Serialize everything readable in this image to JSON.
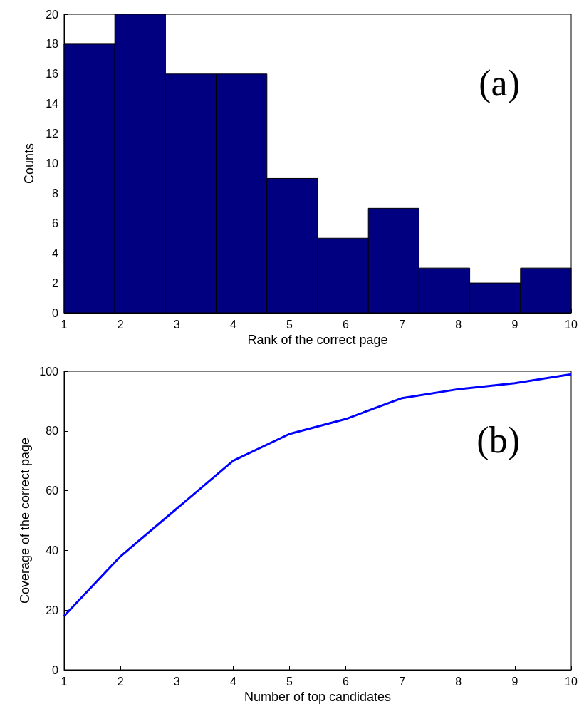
{
  "chart_data": [
    {
      "type": "histogram",
      "bins": [
        1,
        1.9,
        2.8,
        3.7,
        4.6,
        5.5,
        6.4,
        7.3,
        8.2,
        9.1,
        10
      ],
      "values": [
        18,
        20,
        16,
        16,
        9,
        5,
        7,
        3,
        2,
        3
      ],
      "color": "#000080",
      "xlim": [
        1,
        10
      ],
      "xticks": [
        1,
        2,
        3,
        4,
        5,
        6,
        7,
        8,
        9,
        10
      ],
      "ylim": [
        0,
        20
      ],
      "yticks": [
        0,
        2,
        4,
        6,
        8,
        10,
        12,
        14,
        16,
        18,
        20
      ],
      "xlabel": "Rank of the correct page",
      "ylabel": "Counts",
      "annotations": [
        "(a)"
      ],
      "grid": false
    },
    {
      "type": "line",
      "x": [
        1,
        2,
        3,
        4,
        5,
        6,
        7,
        8,
        9,
        10
      ],
      "values": [
        18,
        38,
        54,
        70,
        79,
        84,
        91,
        94,
        96,
        99
      ],
      "color": "#0000ff",
      "marker": "none",
      "xlim": [
        1,
        10
      ],
      "xticks": [
        1,
        2,
        3,
        4,
        5,
        6,
        7,
        8,
        9,
        10
      ],
      "ylim": [
        0,
        100
      ],
      "yticks": [
        0,
        20,
        40,
        60,
        80,
        100
      ],
      "xlabel": "Number of top candidates",
      "ylabel": "Coverage of the correct page",
      "annotations": [
        "(b)"
      ],
      "grid": false
    }
  ]
}
